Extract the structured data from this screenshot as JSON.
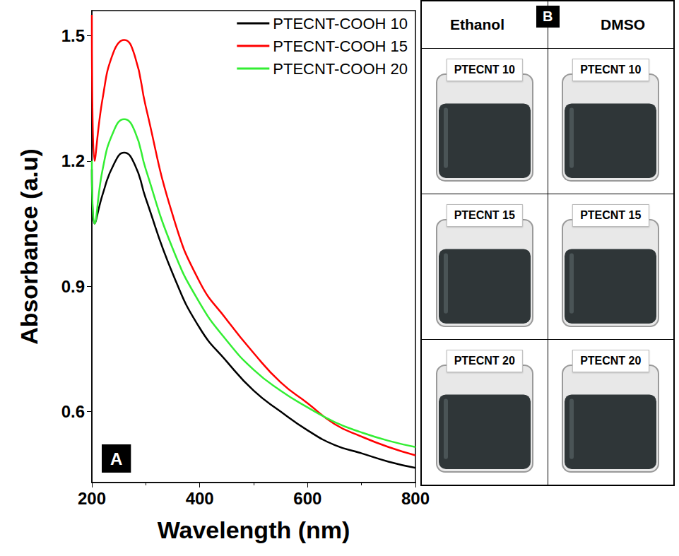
{
  "chart_data": {
    "type": "line",
    "xlabel": "Wavelength (nm)",
    "ylabel": "Absorbance (a.u)",
    "annotations": [
      "A"
    ],
    "x": [
      200,
      205,
      220,
      240,
      260,
      280,
      300,
      350,
      400,
      450,
      500,
      550,
      600,
      650,
      700,
      750,
      800
    ],
    "series": [
      {
        "name": "PTECNT-COOH 10",
        "color": "#000000",
        "values": [
          1.18,
          1.05,
          1.12,
          1.19,
          1.22,
          1.19,
          1.11,
          0.93,
          0.8,
          0.72,
          0.65,
          0.6,
          0.555,
          0.52,
          0.5,
          0.48,
          0.465
        ]
      },
      {
        "name": "PTECNT-COOH 15",
        "color": "#ff0000",
        "values": [
          1.55,
          1.2,
          1.35,
          1.46,
          1.49,
          1.45,
          1.33,
          1.07,
          0.91,
          0.82,
          0.74,
          0.67,
          0.62,
          0.57,
          0.54,
          0.515,
          0.495
        ]
      },
      {
        "name": "PTECNT-COOH 20",
        "color": "#33ee33",
        "values": [
          1.2,
          1.05,
          1.18,
          1.27,
          1.3,
          1.27,
          1.18,
          0.99,
          0.86,
          0.77,
          0.7,
          0.65,
          0.61,
          0.575,
          0.55,
          0.53,
          0.515
        ]
      }
    ],
    "xlim": [
      200,
      800
    ],
    "xticks": [
      200,
      400,
      600,
      800
    ],
    "ylim": [
      0.43,
      1.56
    ],
    "yticks": [
      0.6,
      0.9,
      1.2,
      1.5
    ],
    "grid": false,
    "legend": "upper right"
  },
  "panel_b": {
    "label": "B",
    "columns": [
      "Ethanol",
      "DMSO"
    ],
    "rows": [
      [
        "PTECNT 10",
        "PTECNT 10"
      ],
      [
        "PTECNT 15",
        "PTECNT 15"
      ],
      [
        "PTECNT 20",
        "PTECNT 20"
      ]
    ]
  }
}
